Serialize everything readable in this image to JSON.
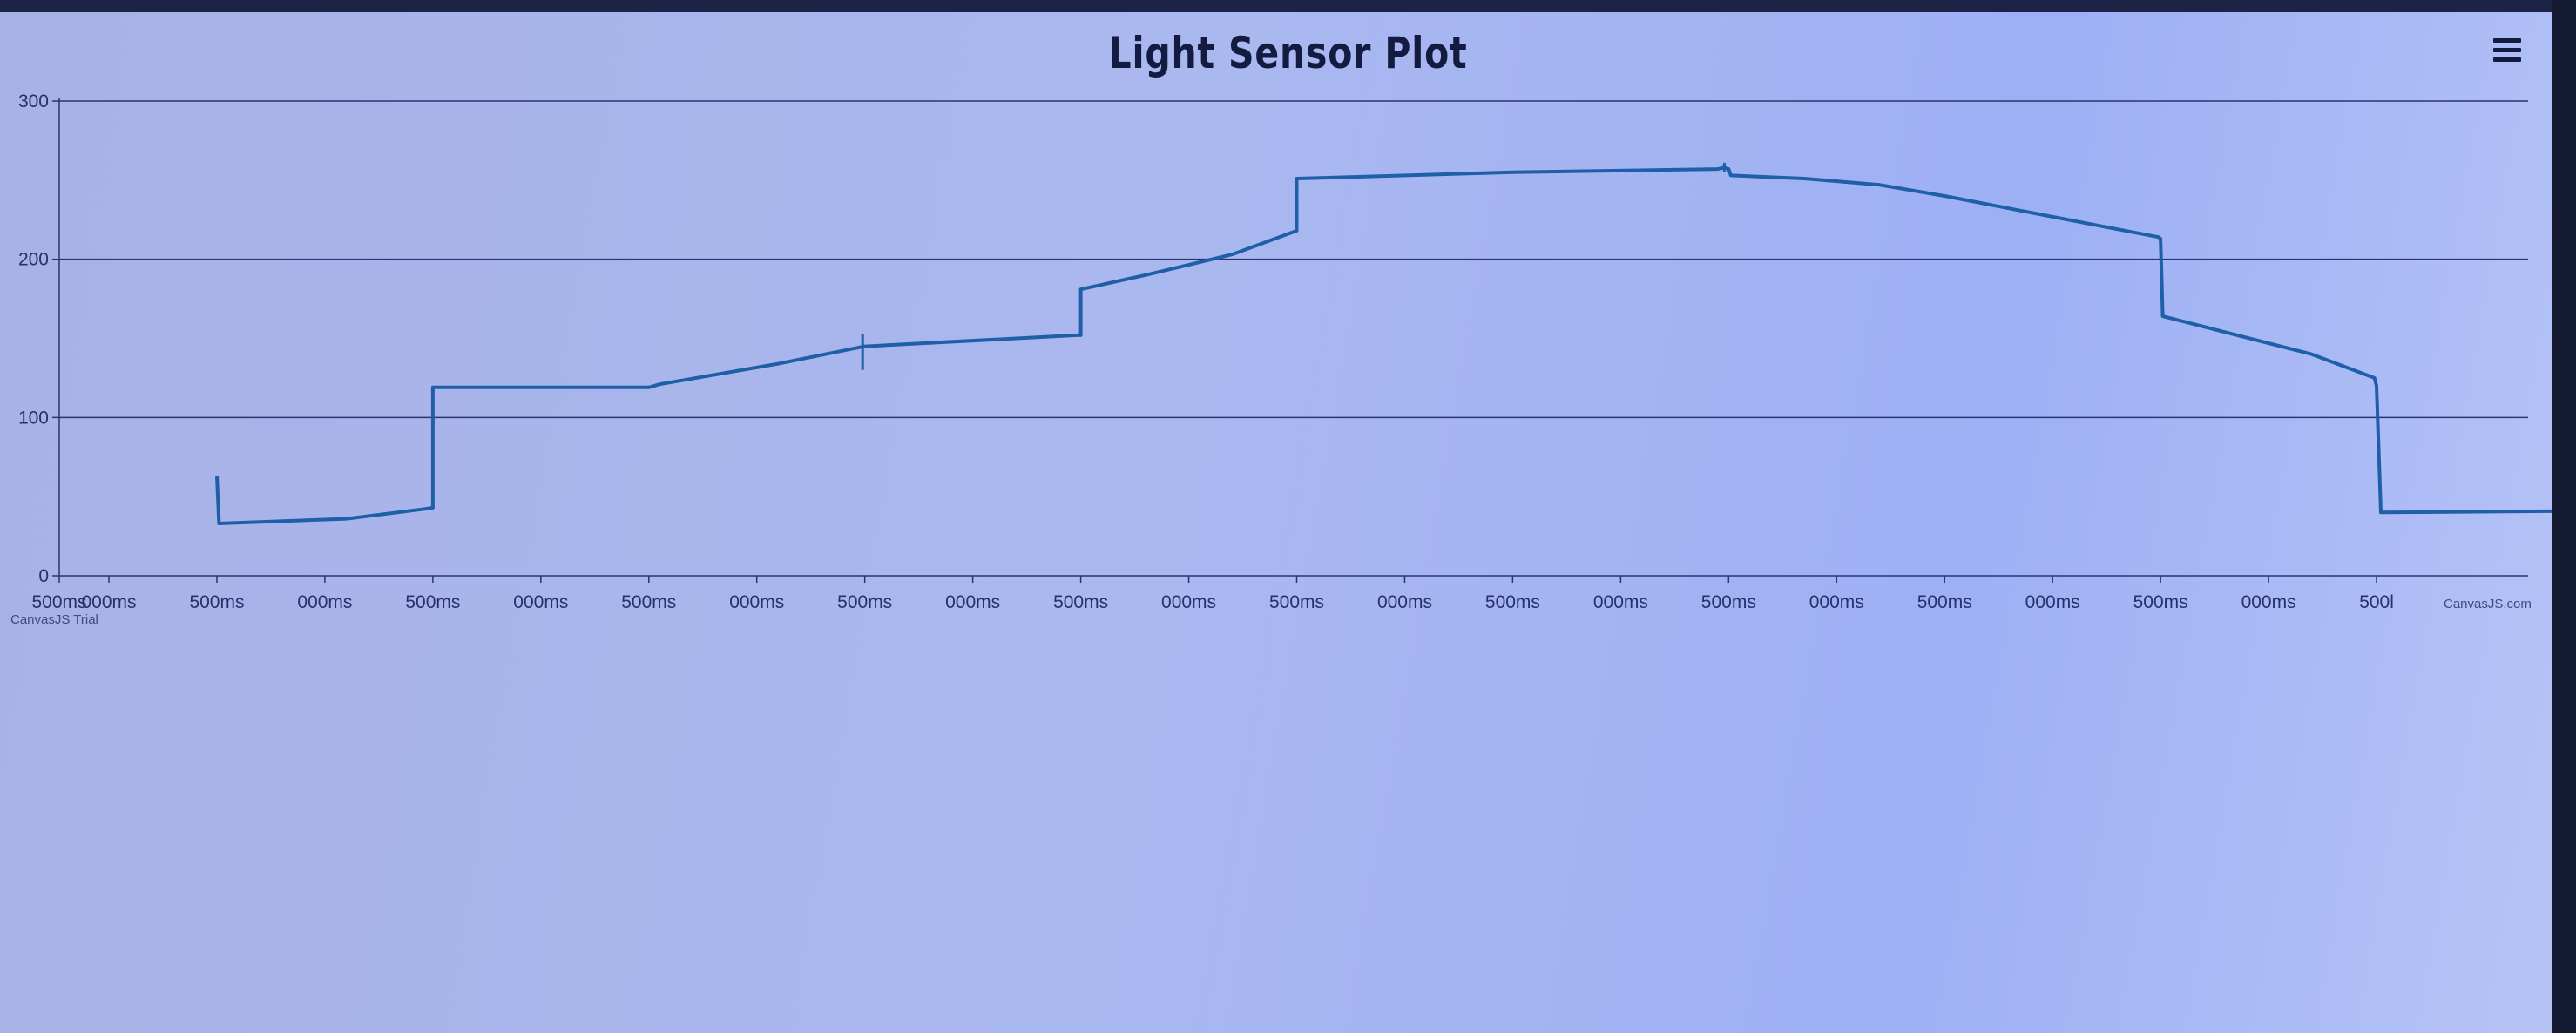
{
  "title": "Light Sensor Plot",
  "menu": {
    "icon": "hamburger-menu-icon"
  },
  "watermarks": {
    "left": "CanvasJS Trial",
    "right": "CanvasJS.com"
  },
  "colors": {
    "line": "#1e5fa8",
    "grid": "#2a3470",
    "title": "#141b40",
    "background": "#a9b6ee"
  },
  "chart_data": {
    "type": "line",
    "title": "Light Sensor Plot",
    "xlabel": "",
    "ylabel": "",
    "ylim": [
      0,
      300
    ],
    "y_ticks": [
      "0",
      "100",
      "200",
      "300"
    ],
    "x_tick_labels": [
      "500ms",
      "000ms",
      "500ms",
      "000ms",
      "500ms",
      "000ms",
      "500ms",
      "000ms",
      "500ms",
      "000ms",
      "500ms",
      "000ms",
      "500ms",
      "000ms",
      "500ms",
      "000ms",
      "500ms",
      "000ms",
      "500ms",
      "000ms",
      "500ms",
      "000ms",
      "500l"
    ],
    "grid": true,
    "series": [
      {
        "x": [
          1.0,
          1.01,
          1.2,
          1.6,
          1.95,
          2.0,
          2.0,
          3.0,
          3.05,
          3.6,
          4.0,
          4.98,
          5.0,
          5.0,
          5.3,
          5.7,
          5.98,
          6.0,
          6.0,
          7.0,
          7.95,
          7.98,
          8.0,
          8.01,
          8.35,
          8.7,
          9.0,
          9.0,
          9.8,
          9.99,
          10.0,
          10.01,
          10.7,
          10.99,
          11.0,
          11.02,
          12.0
        ],
        "y": [
          63,
          33,
          34,
          36,
          42,
          43,
          119,
          119,
          121,
          134,
          145,
          152,
          152,
          181,
          190,
          203,
          217,
          218,
          251,
          255,
          257,
          258,
          257,
          253,
          251,
          247,
          240,
          240,
          219,
          214,
          213,
          164,
          140,
          125,
          120,
          40,
          41
        ]
      }
    ]
  }
}
